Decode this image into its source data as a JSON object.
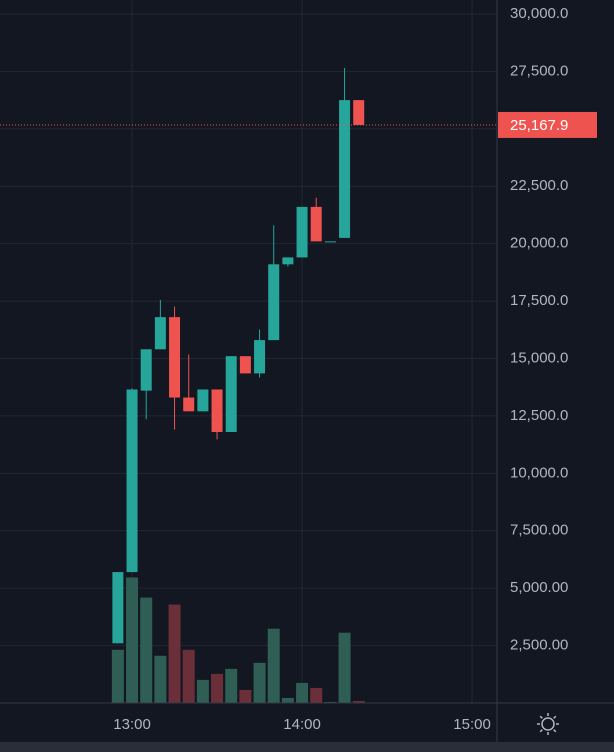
{
  "chart_data": {
    "type": "candlestick",
    "x": [
      775,
      780,
      785,
      790,
      795,
      800,
      805,
      810,
      815,
      820,
      825,
      830,
      835,
      840,
      845,
      850,
      855,
      860
    ],
    "open": [
      2600,
      5700,
      13600,
      15400,
      16800,
      13300,
      12700,
      13650,
      11800,
      15100,
      14350,
      15800,
      19100,
      19400,
      21600,
      20100,
      20250,
      26250
    ],
    "high": [
      5700,
      13700,
      15400,
      17550,
      17260,
      15170,
      13650,
      13650,
      15100,
      15100,
      16260,
      20800,
      19400,
      21600,
      22000,
      20100,
      27650,
      26250
    ],
    "low": [
      2600,
      5700,
      12350,
      15400,
      11900,
      12700,
      12700,
      11480,
      11800,
      14350,
      14170,
      15800,
      19000,
      19400,
      20100,
      20100,
      20250,
      25167.9
    ],
    "close": [
      5700,
      13650,
      15400,
      16800,
      13300,
      12700,
      13650,
      11800,
      15100,
      14350,
      15800,
      19100,
      19400,
      21600,
      20100,
      20100,
      26250,
      25167.9
    ],
    "volume": [
      53,
      125,
      105,
      47,
      98,
      53,
      23,
      29,
      34,
      13,
      40,
      74,
      5,
      20,
      15,
      1,
      70,
      2
    ],
    "volume_ylim": [
      0,
      700
    ],
    "up_color": "#26a69a",
    "down_color": "#ef5350",
    "up_volume_color": "#2f5e55",
    "down_volume_color": "#6b2f3a",
    "xlim": [
      733.4,
      908.8
    ],
    "xticks": [
      {
        "value": 780,
        "label": "13:00"
      },
      {
        "value": 840,
        "label": "14:00"
      },
      {
        "value": 900,
        "label": "15:00"
      }
    ],
    "ylim": [
      0,
      30608
    ],
    "yticks": [
      {
        "value": 2500,
        "label": "2,500.00"
      },
      {
        "value": 5000,
        "label": "5,000.00"
      },
      {
        "value": 7500,
        "label": "7,500.00"
      },
      {
        "value": 10000,
        "label": "10,000.0"
      },
      {
        "value": 12500,
        "label": "12,500.0"
      },
      {
        "value": 15000,
        "label": "15,000.0"
      },
      {
        "value": 17500,
        "label": "17,500.0"
      },
      {
        "value": 20000,
        "label": "20,000.0"
      },
      {
        "value": 22500,
        "label": "22,500.0"
      },
      {
        "value": 25000,
        "label": "25,000.0"
      },
      {
        "value": 27500,
        "label": "27,500.0"
      },
      {
        "value": 30000,
        "label": "30,000.0"
      }
    ],
    "last_price": {
      "value": 25167.9,
      "label": "25,167.9",
      "color": "#ef5350"
    },
    "grid": true
  }
}
